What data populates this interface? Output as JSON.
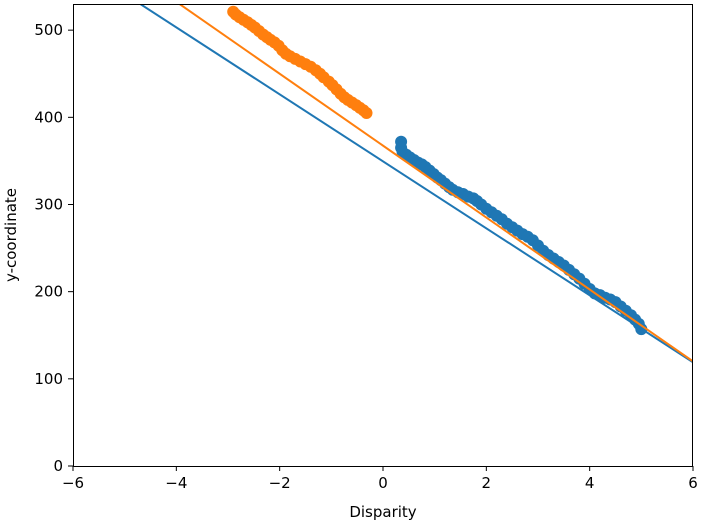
{
  "chart_data": {
    "type": "scatter",
    "title": "",
    "xlabel": "Disparity",
    "ylabel": "y-coordinate",
    "xlim": [
      -6,
      6
    ],
    "ylim": [
      0,
      530
    ],
    "x_ticks": [
      -6,
      -4,
      -2,
      0,
      2,
      4,
      6
    ],
    "x_tick_labels": [
      "−6",
      "−4",
      "−2",
      "0",
      "2",
      "4",
      "6"
    ],
    "y_ticks": [
      0,
      100,
      200,
      300,
      400,
      500
    ],
    "y_tick_labels": [
      "0",
      "100",
      "200",
      "300",
      "400",
      "500"
    ],
    "grid": false,
    "legend": "none",
    "series": [
      {
        "color": "#1f77b4",
        "points": [
          [
            0.35,
            372
          ],
          [
            0.35,
            365
          ],
          [
            0.38,
            360
          ],
          [
            0.45,
            357
          ],
          [
            0.52,
            354
          ],
          [
            0.6,
            351
          ],
          [
            0.68,
            348
          ],
          [
            0.75,
            346
          ],
          [
            0.82,
            343
          ],
          [
            0.9,
            339
          ],
          [
            0.98,
            335
          ],
          [
            1.05,
            331
          ],
          [
            1.12,
            328
          ],
          [
            1.2,
            324
          ],
          [
            1.28,
            320
          ],
          [
            1.35,
            317
          ],
          [
            1.45,
            314
          ],
          [
            1.55,
            312
          ],
          [
            1.65,
            309
          ],
          [
            1.75,
            307
          ],
          [
            1.82,
            304
          ],
          [
            1.9,
            300
          ],
          [
            2.0,
            295
          ],
          [
            2.1,
            291
          ],
          [
            2.2,
            287
          ],
          [
            2.3,
            283
          ],
          [
            2.4,
            278
          ],
          [
            2.5,
            274
          ],
          [
            2.6,
            270
          ],
          [
            2.7,
            266
          ],
          [
            2.8,
            263
          ],
          [
            2.9,
            259
          ],
          [
            3.0,
            253
          ],
          [
            3.1,
            247
          ],
          [
            3.2,
            242
          ],
          [
            3.3,
            238
          ],
          [
            3.4,
            234
          ],
          [
            3.5,
            230
          ],
          [
            3.6,
            225
          ],
          [
            3.7,
            220
          ],
          [
            3.8,
            215
          ],
          [
            3.9,
            209
          ],
          [
            4.0,
            203
          ],
          [
            4.1,
            198
          ],
          [
            4.2,
            196
          ],
          [
            4.3,
            193
          ],
          [
            4.4,
            191
          ],
          [
            4.5,
            188
          ],
          [
            4.6,
            183
          ],
          [
            4.7,
            178
          ],
          [
            4.8,
            173
          ],
          [
            4.88,
            168
          ],
          [
            4.95,
            163
          ],
          [
            5.0,
            157
          ]
        ],
        "fit": [
          [
            -6,
            580
          ],
          [
            6,
            119
          ]
        ]
      },
      {
        "color": "#ff7f0e",
        "points": [
          [
            -2.9,
            521
          ],
          [
            -2.85,
            518
          ],
          [
            -2.78,
            515
          ],
          [
            -2.7,
            512
          ],
          [
            -2.62,
            509
          ],
          [
            -2.55,
            506
          ],
          [
            -2.48,
            503
          ],
          [
            -2.4,
            499
          ],
          [
            -2.32,
            495
          ],
          [
            -2.25,
            492
          ],
          [
            -2.18,
            489
          ],
          [
            -2.1,
            486
          ],
          [
            -2.02,
            482
          ],
          [
            -1.95,
            477
          ],
          [
            -1.88,
            473
          ],
          [
            -1.8,
            470
          ],
          [
            -1.7,
            467
          ],
          [
            -1.6,
            464
          ],
          [
            -1.5,
            461
          ],
          [
            -1.4,
            458
          ],
          [
            -1.3,
            454
          ],
          [
            -1.22,
            450
          ],
          [
            -1.15,
            446
          ],
          [
            -1.05,
            441
          ],
          [
            -0.98,
            437
          ],
          [
            -0.9,
            432
          ],
          [
            -0.82,
            427
          ],
          [
            -0.75,
            423
          ],
          [
            -0.68,
            420
          ],
          [
            -0.6,
            417
          ],
          [
            -0.52,
            414
          ],
          [
            -0.45,
            411
          ],
          [
            -0.38,
            408
          ],
          [
            -0.32,
            405
          ]
        ],
        "fit": [
          [
            -6,
            615
          ],
          [
            6,
            120
          ]
        ]
      }
    ]
  }
}
